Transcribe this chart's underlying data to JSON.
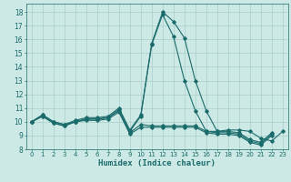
{
  "xlabel": "Humidex (Indice chaleur)",
  "ylabel": "",
  "bg_color": "#cce9e5",
  "grid_color": "#aacfcc",
  "line_color": "#1a6b6b",
  "xlim": [
    -0.5,
    23.5
  ],
  "ylim": [
    8,
    18.6
  ],
  "yticks": [
    8,
    9,
    10,
    11,
    12,
    13,
    14,
    15,
    16,
    17,
    18
  ],
  "xticks": [
    0,
    1,
    2,
    3,
    4,
    5,
    6,
    7,
    8,
    9,
    10,
    11,
    12,
    13,
    14,
    15,
    16,
    17,
    18,
    19,
    20,
    21,
    22,
    23
  ],
  "series": [
    [
      10.0,
      10.5,
      10.0,
      9.8,
      10.0,
      10.2,
      10.2,
      10.3,
      10.9,
      9.3,
      10.4,
      15.6,
      17.8,
      16.2,
      13.0,
      10.8,
      9.3,
      9.3,
      9.3,
      9.2,
      8.7,
      8.5,
      9.2,
      null
    ],
    [
      10.0,
      10.5,
      10.0,
      9.8,
      10.1,
      10.3,
      10.3,
      10.4,
      11.0,
      9.4,
      10.5,
      15.7,
      18.0,
      17.3,
      16.1,
      13.0,
      10.8,
      9.3,
      9.4,
      9.4,
      9.3,
      8.8,
      8.6,
      9.3
    ],
    [
      10.0,
      10.4,
      9.9,
      9.7,
      10.0,
      10.2,
      10.2,
      10.3,
      10.8,
      9.2,
      9.8,
      9.7,
      9.7,
      9.7,
      9.7,
      9.7,
      9.3,
      9.2,
      9.2,
      9.1,
      8.6,
      8.4,
      9.1,
      null
    ],
    [
      10.0,
      10.4,
      9.9,
      9.7,
      10.0,
      10.1,
      10.1,
      10.2,
      10.7,
      9.1,
      9.6,
      9.6,
      9.6,
      9.6,
      9.6,
      9.6,
      9.2,
      9.1,
      9.1,
      9.0,
      8.5,
      8.3,
      9.0,
      null
    ]
  ]
}
